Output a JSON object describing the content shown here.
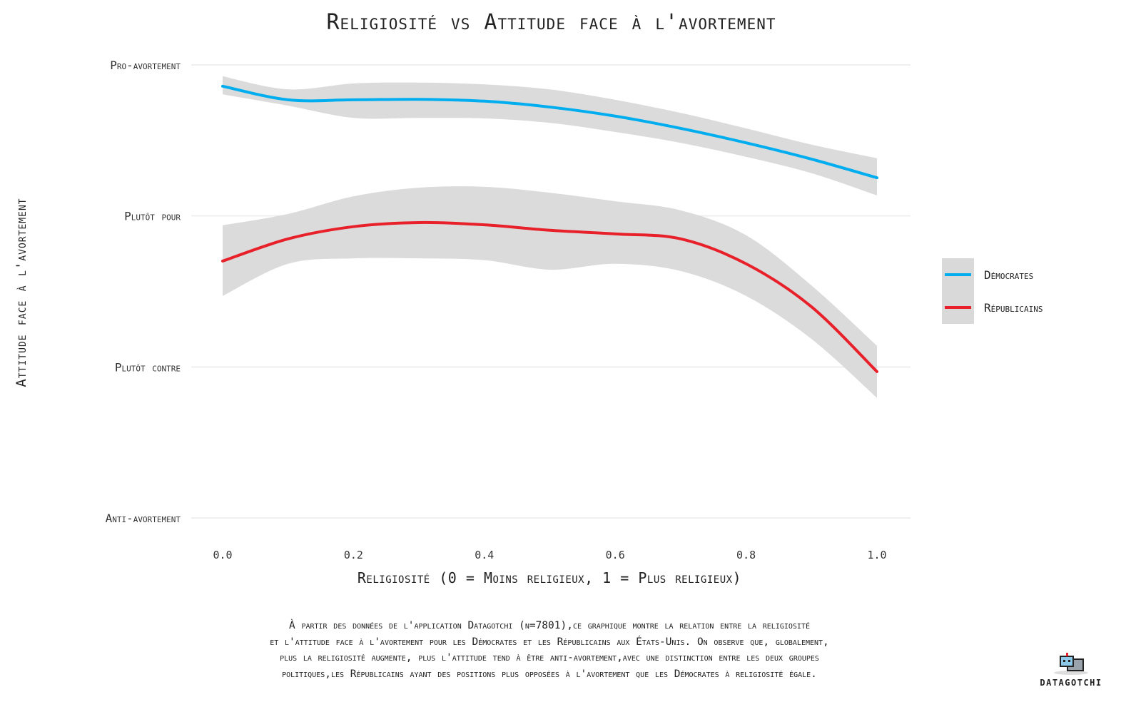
{
  "chart_data": {
    "type": "line",
    "title": "Religiosité vs Attitude face à l'avortement",
    "xlabel": "Religiosité (0 = Moins religieux, 1 = Plus religieux)",
    "ylabel": "Attitude face à l'avortement",
    "xlim": [
      0,
      1
    ],
    "ylim": [
      0,
      1
    ],
    "x_ticks": [
      "0.0",
      "0.2",
      "0.4",
      "0.6",
      "0.8",
      "1.0"
    ],
    "y_ticks": [
      {
        "value": 0,
        "label": "Anti-avortement"
      },
      {
        "value": 0.333,
        "label": "Plutôt contre"
      },
      {
        "value": 0.667,
        "label": "Plutôt pour"
      },
      {
        "value": 1,
        "label": "Pro-avortement"
      }
    ],
    "grid": true,
    "legend_position": "right",
    "x": [
      0,
      0.1,
      0.2,
      0.3,
      0.4,
      0.5,
      0.6,
      0.7,
      0.8,
      0.9,
      1.0
    ],
    "series": [
      {
        "name": "Démocrates",
        "color": "#00aeef",
        "values": [
          0.953,
          0.923,
          0.923,
          0.924,
          0.92,
          0.907,
          0.887,
          0.86,
          0.828,
          0.792,
          0.751
        ],
        "upper": [
          0.975,
          0.946,
          0.959,
          0.961,
          0.957,
          0.946,
          0.923,
          0.894,
          0.86,
          0.824,
          0.794
        ],
        "lower": [
          0.935,
          0.91,
          0.883,
          0.883,
          0.882,
          0.872,
          0.852,
          0.828,
          0.797,
          0.761,
          0.712
        ]
      },
      {
        "name": "Républicains",
        "color": "#e8202a",
        "values": [
          0.567,
          0.616,
          0.643,
          0.652,
          0.647,
          0.635,
          0.627,
          0.616,
          0.561,
          0.466,
          0.323
        ],
        "upper": [
          0.646,
          0.671,
          0.71,
          0.729,
          0.731,
          0.718,
          0.699,
          0.679,
          0.624,
          0.513,
          0.38
        ],
        "lower": [
          0.49,
          0.561,
          0.573,
          0.573,
          0.569,
          0.548,
          0.561,
          0.545,
          0.49,
          0.395,
          0.265
        ]
      }
    ],
    "band_color": "#d9d9d9",
    "caption": [
      "À partir des données de l'application Datagotchi (n=7801),ce graphique montre la relation entre la religiosité",
      "et l'attitude face à l'avortement pour les Démocrates et les Républicains aux États-Unis. On observe que, globalement,",
      "plus la religiosité augmente, plus l'attitude tend à être anti-avortement,avec une distinction entre les deux groupes",
      "politiques,les Républicains ayant des positions plus opposées à l'avortement que les Démocrates à religiosité égale."
    ]
  },
  "logo": {
    "text": "DATAGOTCHI"
  }
}
